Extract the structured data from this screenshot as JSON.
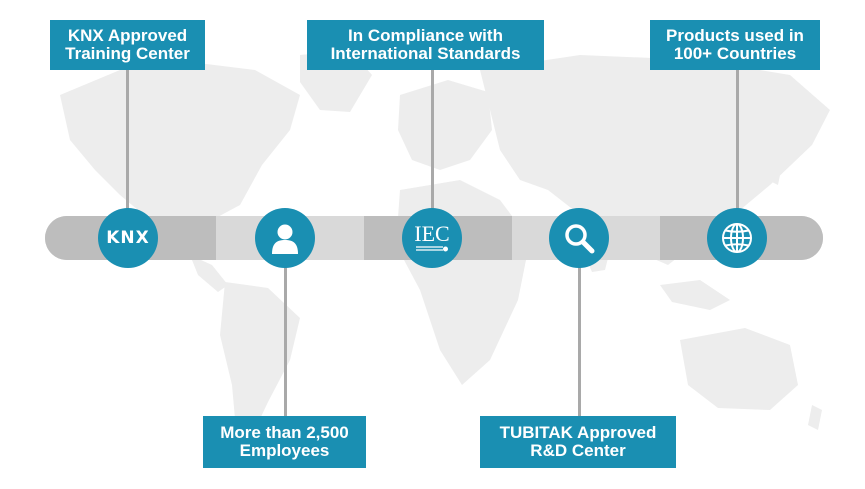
{
  "badges": [
    {
      "icon": "knx-logo-icon",
      "mark": "KNX",
      "lines": [
        "KNX Approved",
        "Training Center"
      ]
    },
    {
      "icon": "person-icon",
      "lines": [
        "More than 2,500",
        "Employees"
      ]
    },
    {
      "icon": "iec-logo-icon",
      "mark": "IEC",
      "lines": [
        "In Compliance with",
        "International Standards"
      ]
    },
    {
      "icon": "magnifier-icon",
      "lines": [
        "TUBITAK Approved",
        "R&D Center"
      ]
    },
    {
      "icon": "globe-icon",
      "lines": [
        "Products used in",
        "100+ Countries"
      ]
    }
  ],
  "colors": {
    "accent": "#1a8fb2",
    "bar_dark": "#bdbdbd",
    "bar_light": "#d9d9d9",
    "map": "#ededed",
    "stem": "#a9a9a9"
  }
}
